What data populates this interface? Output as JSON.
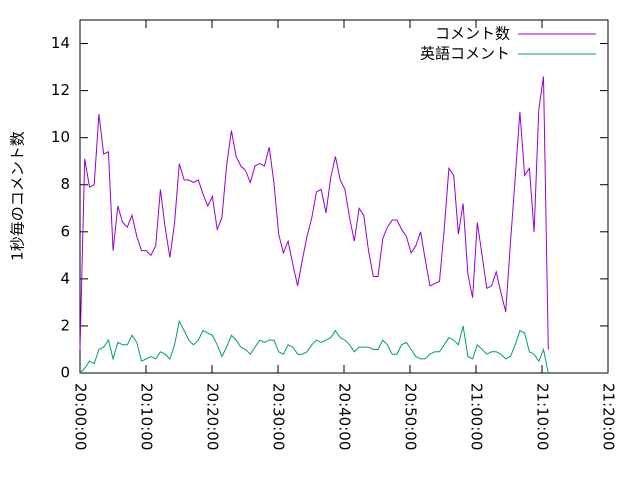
{
  "chart_data": {
    "type": "line",
    "ylabel": "1秒毎のコメント数",
    "x": [
      "20:00:00",
      "20:00:43",
      "20:01:26",
      "20:02:09",
      "20:02:52",
      "20:03:35",
      "20:04:18",
      "20:05:01",
      "20:05:44",
      "20:06:27",
      "20:07:10",
      "20:07:53",
      "20:08:36",
      "20:09:19",
      "20:10:02",
      "20:10:45",
      "20:11:28",
      "20:12:11",
      "20:12:54",
      "20:13:37",
      "20:14:20",
      "20:15:03",
      "20:15:46",
      "20:16:29",
      "20:17:12",
      "20:17:55",
      "20:18:38",
      "20:19:21",
      "20:20:04",
      "20:20:47",
      "20:21:30",
      "20:22:13",
      "20:22:56",
      "20:23:39",
      "20:24:22",
      "20:25:05",
      "20:25:48",
      "20:26:31",
      "20:27:14",
      "20:27:57",
      "20:28:40",
      "20:29:23",
      "20:30:06",
      "20:30:49",
      "20:31:32",
      "20:32:15",
      "20:32:58",
      "20:33:41",
      "20:34:24",
      "20:35:07",
      "20:35:50",
      "20:36:33",
      "20:37:16",
      "20:37:59",
      "20:38:42",
      "20:39:25",
      "20:40:08",
      "20:40:51",
      "20:41:34",
      "20:42:17",
      "20:43:00",
      "20:43:43",
      "20:44:26",
      "20:45:09",
      "20:45:52",
      "20:46:35",
      "20:47:18",
      "20:48:01",
      "20:48:44",
      "20:49:27",
      "20:50:10",
      "20:50:53",
      "20:51:36",
      "20:52:19",
      "20:53:02",
      "20:53:45",
      "20:54:28",
      "20:55:11",
      "20:55:54",
      "20:56:37",
      "20:57:20",
      "20:58:03",
      "20:58:46",
      "20:59:29",
      "21:00:12",
      "21:00:55",
      "21:01:38",
      "21:02:21",
      "21:03:04",
      "21:03:47",
      "21:04:30",
      "21:05:13",
      "21:05:56",
      "21:06:39",
      "21:07:22",
      "21:08:05",
      "21:08:48",
      "21:09:31",
      "21:10:14",
      "21:10:57"
    ],
    "series": [
      {
        "name": "コメント数",
        "color": "#9400d3",
        "values": [
          1.0,
          9.1,
          7.9,
          8.0,
          11.0,
          9.3,
          9.4,
          5.2,
          7.1,
          6.4,
          6.2,
          6.7,
          5.8,
          5.2,
          5.2,
          5.0,
          5.4,
          7.8,
          6.2,
          4.9,
          6.4,
          8.9,
          8.2,
          8.2,
          8.1,
          8.2,
          7.6,
          7.1,
          7.5,
          6.1,
          6.6,
          8.8,
          10.3,
          9.2,
          8.8,
          8.6,
          8.1,
          8.8,
          8.9,
          8.8,
          9.6,
          8.1,
          5.9,
          5.1,
          5.6,
          4.6,
          3.7,
          4.8,
          5.8,
          6.6,
          7.7,
          7.8,
          6.8,
          8.3,
          9.2,
          8.2,
          7.8,
          6.6,
          5.6,
          7.0,
          6.7,
          5.2,
          4.1,
          4.1,
          5.7,
          6.2,
          6.5,
          6.5,
          6.1,
          5.8,
          5.1,
          5.4,
          6.0,
          4.8,
          3.7,
          3.8,
          3.9,
          6.1,
          8.7,
          8.4,
          5.9,
          7.2,
          4.2,
          3.2,
          6.4,
          5.0,
          3.6,
          3.7,
          4.3,
          3.4,
          2.6,
          5.5,
          8.3,
          11.1,
          8.4,
          8.7,
          6.0,
          11.2,
          12.6,
          1.0
        ]
      },
      {
        "name": "英語コメント",
        "color": "#009e73",
        "values": [
          0.0,
          0.2,
          0.5,
          0.4,
          1.0,
          1.1,
          1.4,
          0.6,
          1.3,
          1.2,
          1.2,
          1.6,
          1.3,
          0.5,
          0.6,
          0.7,
          0.6,
          0.9,
          0.8,
          0.6,
          1.2,
          2.2,
          1.8,
          1.4,
          1.2,
          1.4,
          1.8,
          1.7,
          1.6,
          1.2,
          0.7,
          1.1,
          1.6,
          1.4,
          1.1,
          1.0,
          0.8,
          1.1,
          1.4,
          1.3,
          1.4,
          1.4,
          0.9,
          0.8,
          1.2,
          1.1,
          0.8,
          0.8,
          0.9,
          1.2,
          1.4,
          1.3,
          1.4,
          1.5,
          1.8,
          1.5,
          1.4,
          1.2,
          0.9,
          1.1,
          1.1,
          1.1,
          1.0,
          1.0,
          1.4,
          1.2,
          0.8,
          0.8,
          1.2,
          1.3,
          1.0,
          0.7,
          0.6,
          0.6,
          0.8,
          0.9,
          0.9,
          1.2,
          1.5,
          1.4,
          1.2,
          2.0,
          0.7,
          0.6,
          1.2,
          1.0,
          0.8,
          0.9,
          0.9,
          0.8,
          0.6,
          0.7,
          1.2,
          1.8,
          1.7,
          0.9,
          0.8,
          0.5,
          1.0,
          0.0
        ]
      }
    ],
    "xlim": [
      "20:00:00",
      "21:20:00"
    ],
    "xticks": [
      "20:00:00",
      "20:10:00",
      "20:20:00",
      "20:30:00",
      "20:40:00",
      "20:50:00",
      "21:00:00",
      "21:10:00",
      "21:20:00"
    ],
    "ylim": [
      0,
      15
    ],
    "yticks": [
      0,
      2,
      4,
      6,
      8,
      10,
      12,
      14
    ],
    "legend": "top-right"
  }
}
